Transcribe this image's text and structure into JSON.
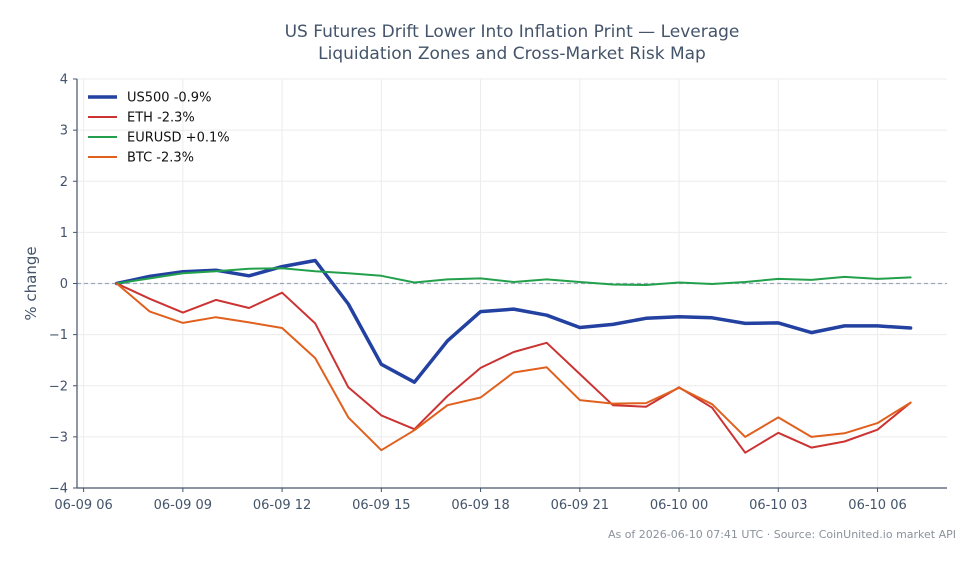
{
  "chart_data": {
    "type": "line",
    "title_line1": "US Futures Drift Lower Into Inflation Print — Leverage",
    "title_line2": "Liquidation Zones and Cross-Market Risk Map",
    "ylabel": "% change",
    "ylim": [
      -4,
      4
    ],
    "yticks": [
      4,
      3,
      2,
      1,
      0,
      -1,
      -2,
      -3,
      -4
    ],
    "ytick_labels": [
      "4",
      "3",
      "2",
      "1",
      "0",
      "−1",
      "−2",
      "−3",
      "−4"
    ],
    "xtick_labels": [
      "06-09 06",
      "06-09 09",
      "06-09 12",
      "06-09 15",
      "06-09 18",
      "06-09 21",
      "06-10 00",
      "06-10 03",
      "06-10 06"
    ],
    "xtick_hours": [
      0,
      3,
      6,
      9,
      12,
      15,
      18,
      21,
      24
    ],
    "x_hours": [
      1,
      2,
      3,
      4,
      5,
      6,
      7,
      8,
      9,
      10,
      11,
      12,
      13,
      14,
      15,
      16,
      17,
      18,
      19,
      20,
      21,
      22,
      23,
      24,
      25
    ],
    "xlim_hours": [
      -0.2,
      26.1
    ],
    "grid": true,
    "legend_position": "top-left",
    "reference_line": 0,
    "series": [
      {
        "name": "US500 -0.9%",
        "color": "#2341a0",
        "width": 3.5,
        "values": [
          0.0,
          0.14,
          0.23,
          0.26,
          0.15,
          0.33,
          0.45,
          -0.4,
          -1.58,
          -1.93,
          -1.12,
          -0.55,
          -0.5,
          -0.62,
          -0.86,
          -0.8,
          -0.68,
          -0.65,
          -0.67,
          -0.78,
          -0.77,
          -0.96,
          -0.83,
          -0.83,
          -0.87
        ]
      },
      {
        "name": "ETH -2.3%",
        "color": "#cc3333",
        "width": 2,
        "values": [
          0.0,
          -0.3,
          -0.57,
          -0.32,
          -0.48,
          -0.18,
          -0.78,
          -2.03,
          -2.58,
          -2.85,
          -2.2,
          -1.65,
          -1.34,
          -1.16,
          -1.77,
          -2.38,
          -2.41,
          -2.03,
          -2.43,
          -3.31,
          -2.92,
          -3.21,
          -3.09,
          -2.86,
          -2.33
        ]
      },
      {
        "name": "EURUSD +0.1%",
        "color": "#22a04b",
        "width": 2,
        "values": [
          0.0,
          0.1,
          0.2,
          0.24,
          0.29,
          0.3,
          0.24,
          0.2,
          0.15,
          0.02,
          0.08,
          0.1,
          0.03,
          0.08,
          0.03,
          -0.02,
          -0.03,
          0.02,
          -0.01,
          0.03,
          0.09,
          0.07,
          0.13,
          0.09,
          0.12
        ]
      },
      {
        "name": "BTC -2.3%",
        "color": "#e0601e",
        "width": 2,
        "values": [
          0.0,
          -0.55,
          -0.77,
          -0.66,
          -0.76,
          -0.87,
          -1.46,
          -2.62,
          -3.26,
          -2.87,
          -2.38,
          -2.23,
          -1.74,
          -1.64,
          -2.28,
          -2.35,
          -2.34,
          -2.04,
          -2.36,
          -3.0,
          -2.62,
          -3.0,
          -2.93,
          -2.73,
          -2.33
        ]
      }
    ],
    "footer": "As of 2026-06-10 07:41 UTC · Source: CoinUnited.io market API"
  }
}
